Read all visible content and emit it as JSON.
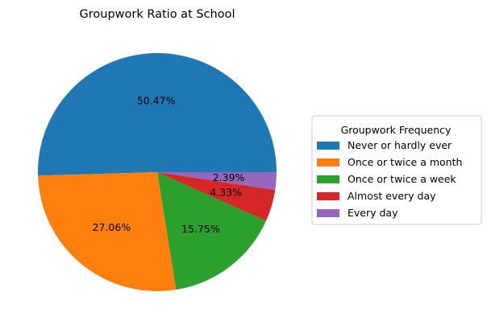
{
  "chart_data": {
    "type": "pie",
    "title": "Groupwork Ratio at School",
    "categories": [
      "Never or hardly ever",
      "Once or twice a month",
      "Once or twice a week",
      "Almost every day",
      "Every day"
    ],
    "values": [
      50.47,
      27.06,
      15.75,
      4.33,
      2.39
    ],
    "value_labels": [
      "50.47%",
      "27.06%",
      "15.75%",
      "4.33%",
      "2.39%"
    ],
    "colors": [
      "#1f77b4",
      "#ff7f0e",
      "#2ca02c",
      "#d62728",
      "#9467bd"
    ],
    "start_angle": "0° (3 o'clock), counter-clockwise",
    "legend": {
      "title": "Groupwork Frequency",
      "placement": "right"
    }
  }
}
